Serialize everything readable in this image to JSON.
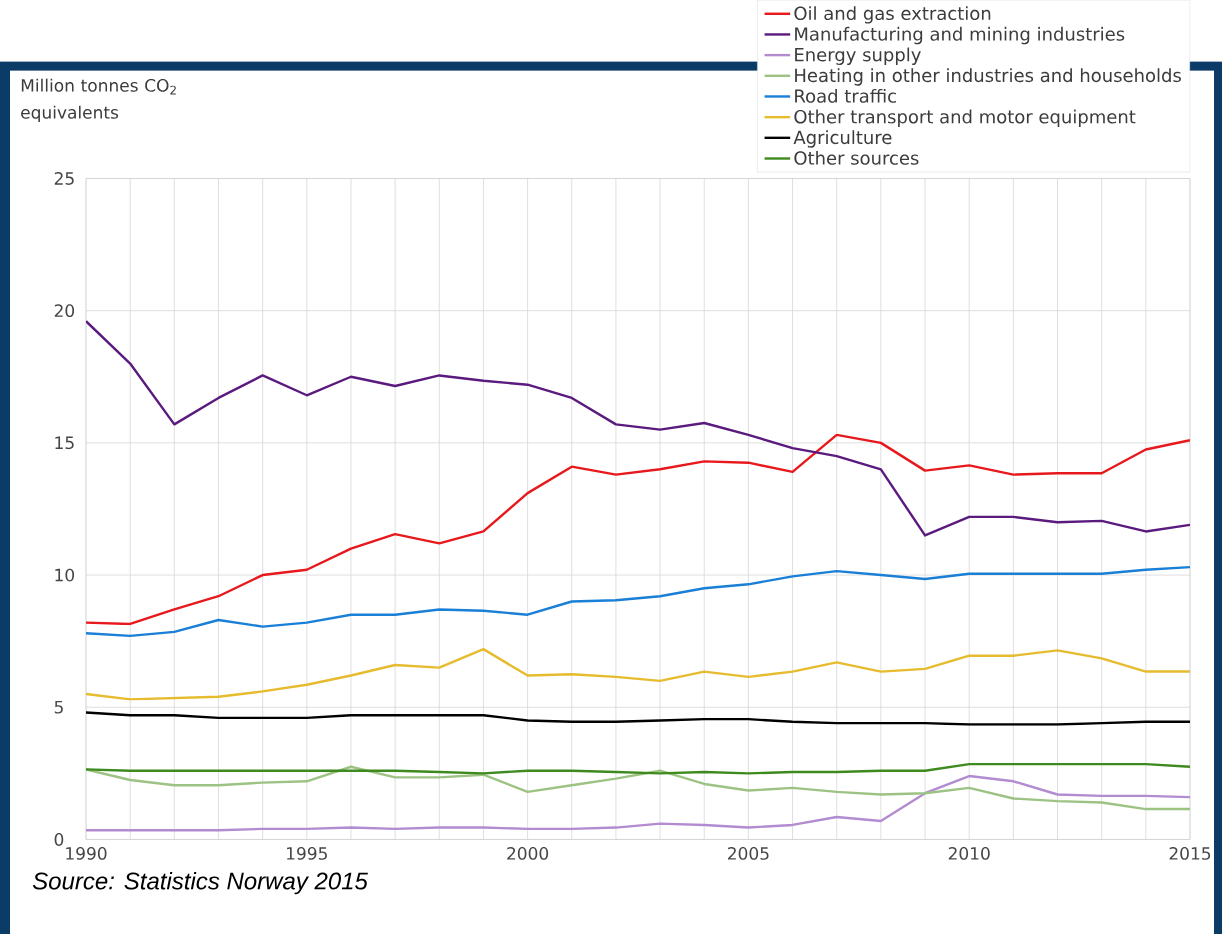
{
  "chart_data": {
    "type": "line",
    "ylabel": "Million tonnes CO$_{2}$ equivalents",
    "x": [
      1990,
      1991,
      1992,
      1993,
      1994,
      1995,
      1996,
      1997,
      1998,
      1999,
      2000,
      2001,
      2002,
      2003,
      2004,
      2005,
      2006,
      2007,
      2008,
      2009,
      2010,
      2011,
      2012,
      2013,
      2014,
      2015
    ],
    "xlim": [
      1990,
      2015
    ],
    "xticks": [
      1990,
      1995,
      2000,
      2005,
      2010,
      2015
    ],
    "ylim": [
      0,
      25
    ],
    "yticks": [
      0,
      5,
      10,
      15,
      20,
      25
    ],
    "grid": true,
    "legend": "top right",
    "marker": "none",
    "line_style": "solid",
    "annotations": [
      "Source: Statistics Norway 2015"
    ],
    "series": [
      {
        "name": "Oil and gas extraction",
        "color": "#e8191c",
        "values": [
          8.2,
          8.15,
          8.7,
          9.2,
          10.0,
          10.2,
          11.0,
          11.55,
          11.2,
          11.65,
          13.1,
          14.1,
          13.8,
          14.0,
          14.3,
          14.25,
          13.9,
          15.3,
          15.0,
          13.95,
          14.15,
          13.8,
          13.85,
          13.85,
          14.75,
          15.1
        ]
      },
      {
        "name": "Manufacturing and mining industries",
        "color": "#5a1a7e",
        "values": [
          19.6,
          18.0,
          15.7,
          16.7,
          17.55,
          16.8,
          17.5,
          17.15,
          17.55,
          17.35,
          17.2,
          16.7,
          15.7,
          15.5,
          15.75,
          15.3,
          14.8,
          14.5,
          14.0,
          11.5,
          12.2,
          12.2,
          12.0,
          12.05,
          11.65,
          11.9
        ]
      },
      {
        "name": "Energy supply",
        "color": "#b38bd0",
        "values": [
          0.35,
          0.35,
          0.35,
          0.35,
          0.4,
          0.4,
          0.45,
          0.4,
          0.45,
          0.45,
          0.4,
          0.4,
          0.45,
          0.6,
          0.55,
          0.45,
          0.55,
          0.85,
          0.7,
          1.75,
          2.4,
          2.2,
          1.7,
          1.65,
          1.65,
          1.6
        ]
      },
      {
        "name": "Heating in other industries and households",
        "color": "#9dc384",
        "values": [
          2.65,
          2.25,
          2.05,
          2.05,
          2.15,
          2.2,
          2.75,
          2.35,
          2.35,
          2.45,
          1.8,
          2.05,
          2.3,
          2.6,
          2.1,
          1.85,
          1.95,
          1.8,
          1.7,
          1.75,
          1.95,
          1.55,
          1.45,
          1.4,
          1.15,
          1.15
        ]
      },
      {
        "name": "Road traffic",
        "color": "#1a7fd6",
        "values": [
          7.8,
          7.7,
          7.85,
          8.3,
          8.05,
          8.2,
          8.5,
          8.5,
          8.7,
          8.65,
          8.5,
          9.0,
          9.05,
          9.2,
          9.5,
          9.65,
          9.95,
          10.15,
          10.0,
          9.85,
          10.05,
          10.05,
          10.05,
          10.05,
          10.2,
          10.3
        ]
      },
      {
        "name": "Other transport and motor equipment",
        "color": "#e6bb2e",
        "values": [
          5.5,
          5.3,
          5.35,
          5.4,
          5.6,
          5.85,
          6.2,
          6.6,
          6.5,
          7.2,
          6.2,
          6.25,
          6.15,
          6.0,
          6.35,
          6.15,
          6.35,
          6.7,
          6.35,
          6.45,
          6.95,
          6.95,
          7.15,
          6.85,
          6.35,
          6.35
        ]
      },
      {
        "name": "Agriculture",
        "color": "#000000",
        "values": [
          4.8,
          4.7,
          4.7,
          4.6,
          4.6,
          4.6,
          4.7,
          4.7,
          4.7,
          4.7,
          4.5,
          4.45,
          4.45,
          4.5,
          4.55,
          4.55,
          4.45,
          4.4,
          4.4,
          4.4,
          4.35,
          4.35,
          4.35,
          4.4,
          4.45,
          4.45
        ]
      },
      {
        "name": "Other sources",
        "color": "#3e8a1e",
        "values": [
          2.65,
          2.6,
          2.6,
          2.6,
          2.6,
          2.6,
          2.6,
          2.6,
          2.55,
          2.5,
          2.6,
          2.6,
          2.55,
          2.5,
          2.55,
          2.5,
          2.55,
          2.55,
          2.6,
          2.6,
          2.85,
          2.85,
          2.85,
          2.85,
          2.85,
          2.75
        ]
      }
    ]
  }
}
